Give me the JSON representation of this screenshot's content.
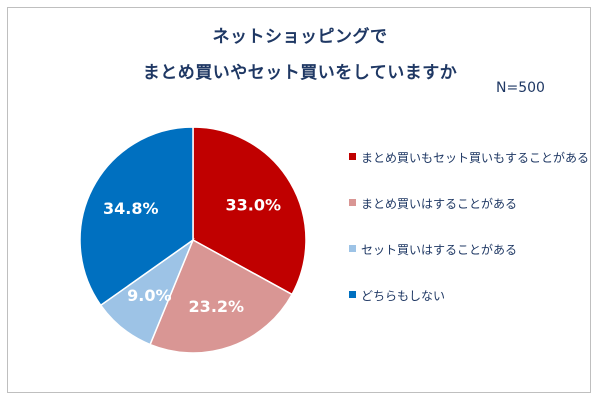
{
  "chart_data": {
    "type": "pie",
    "title_line1": "ネットショッピングで",
    "title_line2": "まとめ買いやセット買いをしていますか",
    "annotation": "N=500",
    "slices": [
      {
        "label": "まとめ買いもセット買いもすることがある",
        "value": 33.0,
        "display": "33.0%",
        "color": "#c00000"
      },
      {
        "label": "まとめ買いはすることがある",
        "value": 23.2,
        "display": "23.2%",
        "color": "#d99694"
      },
      {
        "label": "セット買いはすることがある",
        "value": 9.0,
        "display": "9.0%",
        "color": "#9dc3e6"
      },
      {
        "label": "どちらもしない",
        "value": 34.8,
        "display": "34.8%",
        "color": "#0070c0"
      }
    ],
    "legend_position": "right",
    "start_angle": "12 o'clock, clockwise"
  }
}
